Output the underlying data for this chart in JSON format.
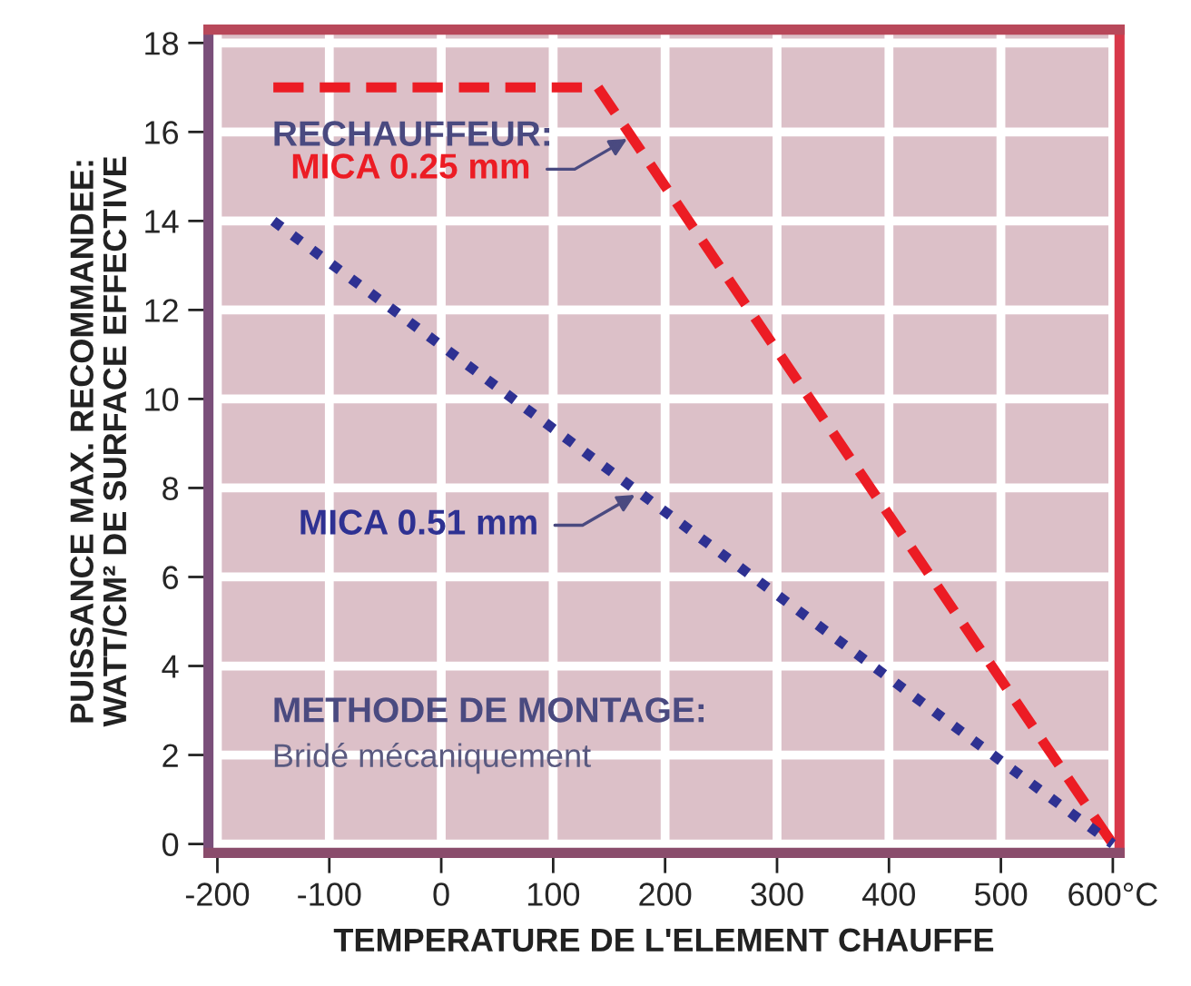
{
  "chart_data": {
    "type": "line",
    "xlabel": "TEMPERATURE DE L'ELEMENT CHAUFFE",
    "ylabel": "PUISSANCE MAX. RECOMMANDEE:\nWATT/CM² DE SURFACE EFFECTIVE",
    "series": [
      {
        "color": "#ec1c24",
        "line_style": "dashed",
        "x": [
          -150,
          140,
          600
        ],
        "values": [
          17,
          17,
          0
        ]
      },
      {
        "color": "#2e3192",
        "line_style": "dotted",
        "x": [
          -150,
          600
        ],
        "values": [
          14,
          0
        ]
      }
    ],
    "annotations": [
      "RECHAUFFEUR:",
      {
        "text": "MICA 0.25 mm",
        "x": 170,
        "y": 15.9
      },
      {
        "text": "MICA 0.51 mm",
        "x": 177,
        "y": 7.9
      },
      "METHODE DE MONTAGE:",
      "Bridé mécaniquement"
    ],
    "xlim": [
      -208,
      606
    ],
    "ylim": [
      -0.2,
      18.3
    ],
    "xticks": [
      -200,
      -100,
      0,
      100,
      200,
      300,
      400,
      500,
      {
        "value": 600,
        "label": "600°C"
      }
    ],
    "yticks": [
      0,
      2,
      4,
      6,
      8,
      10,
      12,
      14,
      16,
      18
    ],
    "grid": true
  }
}
